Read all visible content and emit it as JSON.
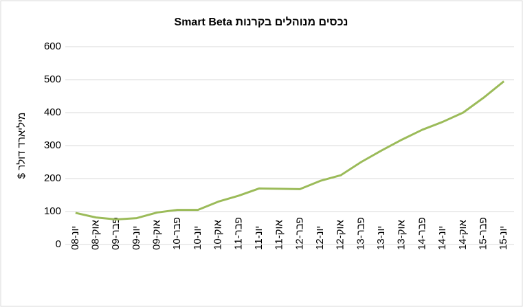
{
  "chart_data": {
    "type": "line",
    "title": "נכסים מנוהלים בקרנות  Smart Beta",
    "ylabel": "מיליארד דולר $",
    "categories": [
      "יונ-08",
      "אוק-08",
      "פבר-09",
      "יונ-09",
      "אוק-09",
      "פבר-10",
      "יונ-10",
      "אוק-10",
      "פבר-11",
      "יונ-11",
      "אוק-11",
      "פבר-12",
      "יונ-12",
      "אוק-12",
      "פבר-13",
      "יונ-13",
      "אוק-13",
      "פבר-14",
      "יונ-14",
      "אוק-14",
      "פבר-15",
      "יונ-15"
    ],
    "series": [
      {
        "name": "נכסים מנוהלים",
        "color": "#9bbb59",
        "values": [
          96,
          82,
          76,
          80,
          97,
          105,
          105,
          130,
          148,
          170,
          169,
          168,
          193,
          210,
          250,
          285,
          318,
          348,
          372,
          400,
          445,
          495
        ]
      }
    ],
    "ylim": [
      0,
      600
    ],
    "yticks": [
      0,
      100,
      200,
      300,
      400,
      500,
      600
    ],
    "grid": true
  }
}
